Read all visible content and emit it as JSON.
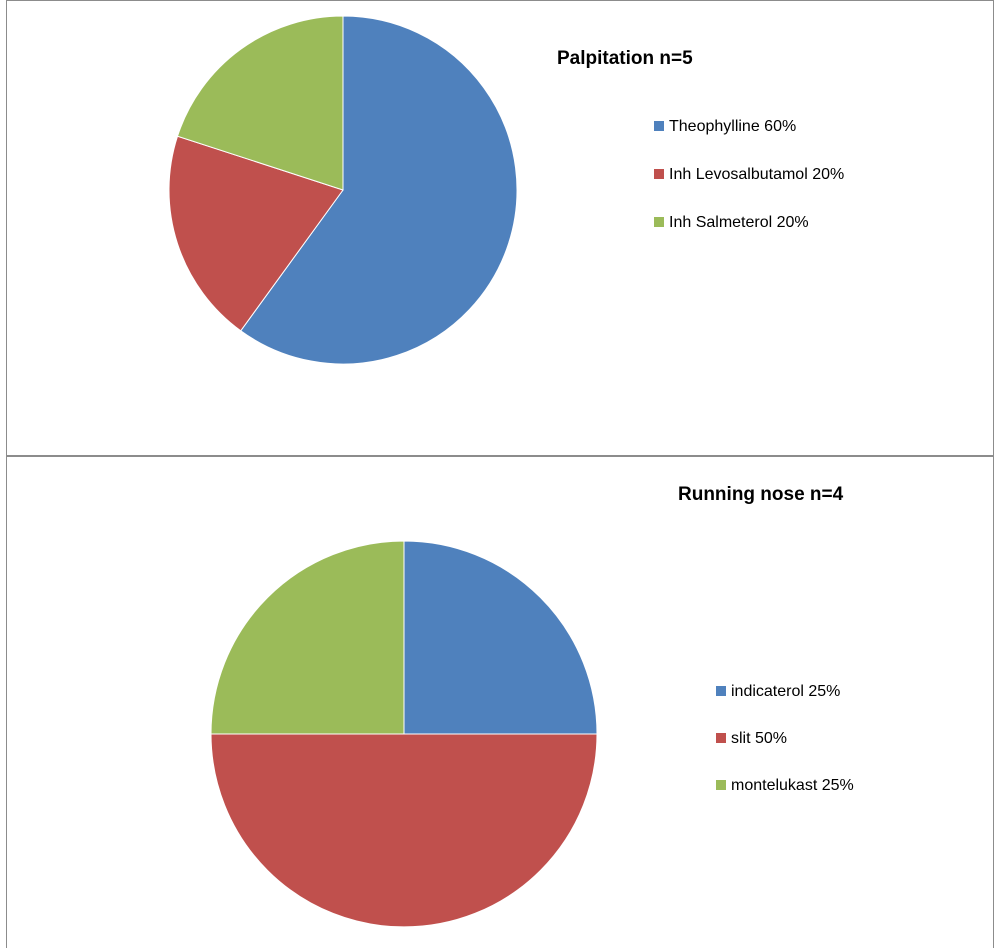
{
  "chart_data": [
    {
      "type": "pie",
      "title": "Palpitation n=5",
      "legend_position": "right",
      "slices": [
        {
          "label": "Theophylline 60%",
          "value": 60,
          "color": "#4f81bd"
        },
        {
          "label": "Inh Levosalbutamol 20%",
          "value": 20,
          "color": "#c0504d"
        },
        {
          "label": "Inh Salmeterol 20%",
          "value": 20,
          "color": "#9bbb59"
        }
      ]
    },
    {
      "type": "pie",
      "title": "Running nose n=4",
      "legend_position": "right",
      "slices": [
        {
          "label": "indicaterol 25%",
          "value": 25,
          "color": "#4f81bd"
        },
        {
          "label": "slit 50%",
          "value": 50,
          "color": "#c0504d"
        },
        {
          "label": "montelukast 25%",
          "value": 25,
          "color": "#9bbb59"
        }
      ]
    }
  ]
}
